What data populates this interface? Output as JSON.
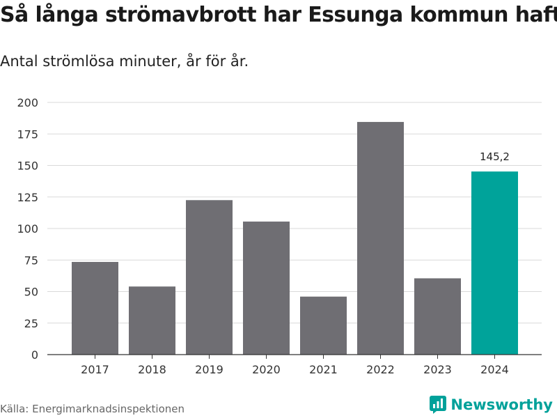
{
  "title": "Så långa strömavbrott har Essunga kommun haft",
  "subtitle": "Antal strömlösa minuter, år för år.",
  "source": "Källa: Energimarknadsinspektionen",
  "brand": "Newsworthy",
  "colors": {
    "bar": "#6f6e73",
    "highlight": "#00a39a",
    "grid": "#d9d9d9",
    "axis": "#333333",
    "brand": "#00a19a"
  },
  "chart_data": {
    "type": "bar",
    "title": "Så långa strömavbrott har Essunga kommun haft",
    "subtitle": "Antal strömlösa minuter, år för år.",
    "xlabel": "",
    "ylabel": "",
    "categories": [
      "2017",
      "2018",
      "2019",
      "2020",
      "2021",
      "2022",
      "2023",
      "2024"
    ],
    "values": [
      73.5,
      54,
      122.5,
      105.5,
      46,
      184.5,
      60.5,
      145.2
    ],
    "highlight_index": 7,
    "data_labels": [
      {
        "index": 7,
        "text": "145,2"
      }
    ],
    "ylim": [
      0,
      200
    ],
    "yticks": [
      0,
      25,
      50,
      75,
      100,
      125,
      150,
      175,
      200
    ],
    "grid": true
  }
}
